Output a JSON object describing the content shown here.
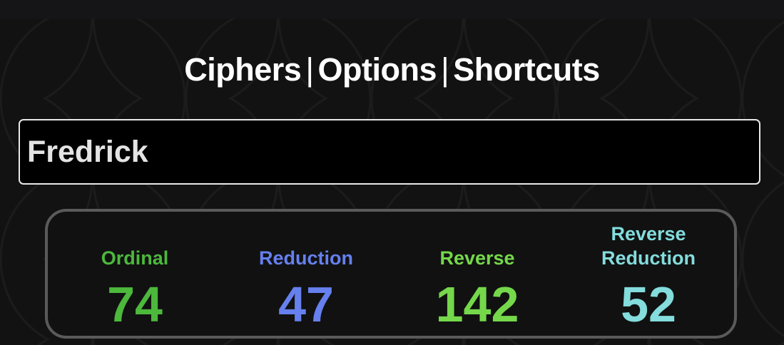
{
  "nav": {
    "items": [
      "Ciphers",
      "Options",
      "Shortcuts"
    ],
    "separator": "|"
  },
  "input": {
    "value": "Fredrick"
  },
  "results": [
    {
      "label": "Ordinal",
      "value": "74",
      "color": "#4cb83c"
    },
    {
      "label": "Reduction",
      "value": "47",
      "color": "#6680ee"
    },
    {
      "label": "Reverse",
      "value": "142",
      "color": "#74d84a"
    },
    {
      "label": "Reverse Reduction",
      "value": "52",
      "color": "#84dcdc"
    }
  ]
}
